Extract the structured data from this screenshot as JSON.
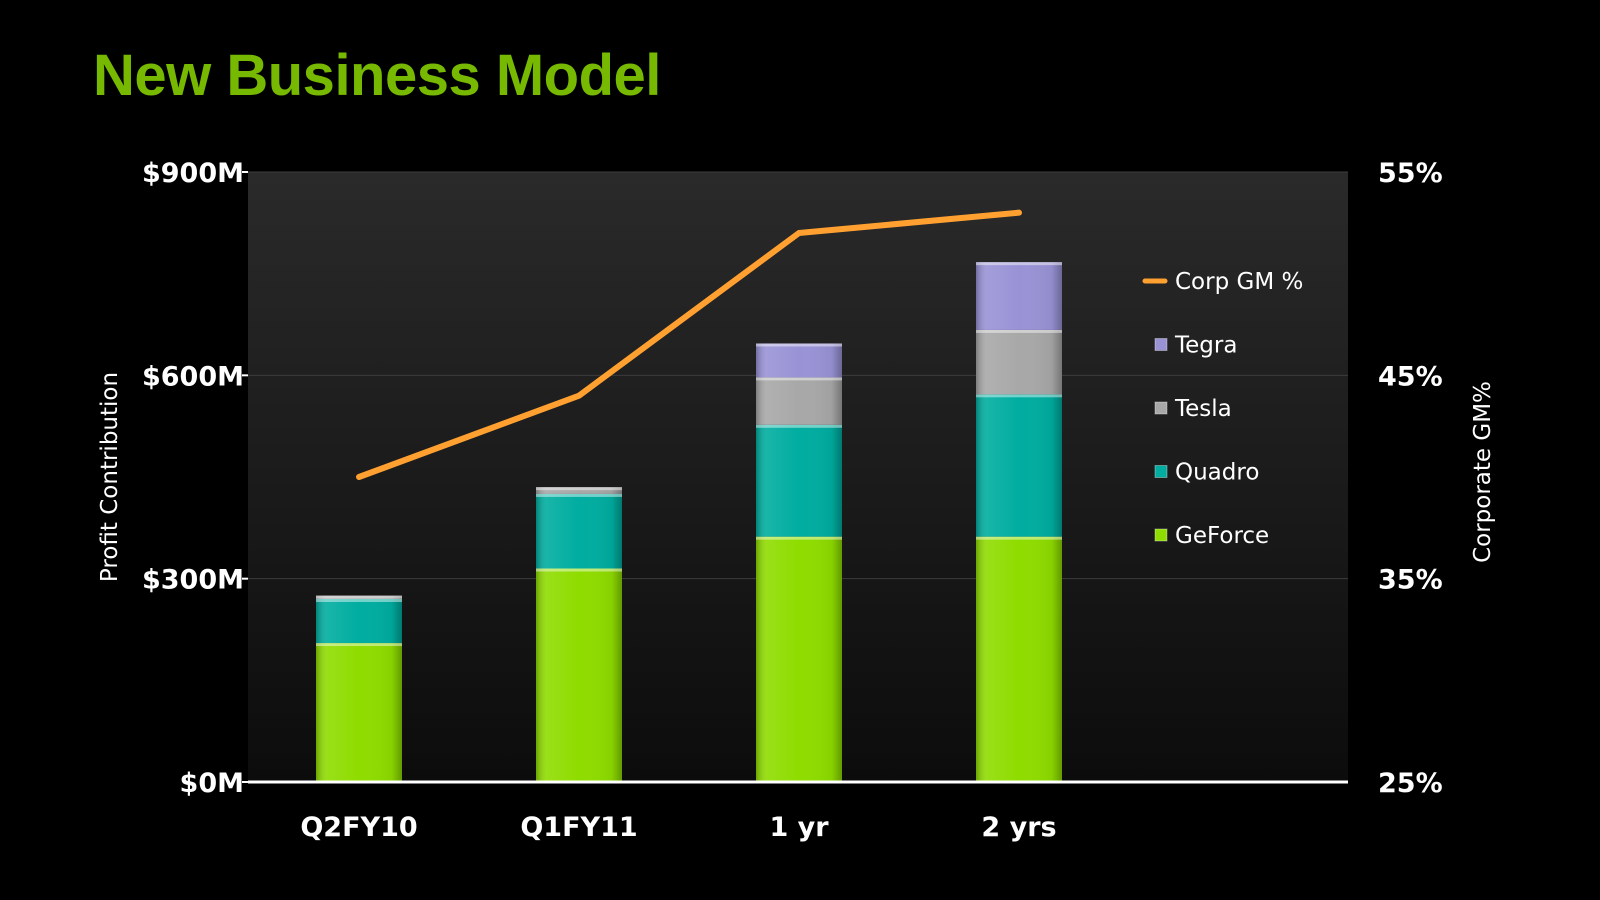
{
  "slide": {
    "title": "New Business Model"
  },
  "chart_data": {
    "type": "bar",
    "stacked": true,
    "title": "",
    "categories": [
      "Q2FY10",
      "Q1FY11",
      "1 yr",
      "2 yrs"
    ],
    "series": [
      {
        "name": "GeForce",
        "values": [
          205,
          315,
          362,
          362
        ],
        "color": "#8fdc00"
      },
      {
        "name": "Quadro",
        "values": [
          65,
          110,
          165,
          210
        ],
        "color": "#00ada0"
      },
      {
        "name": "Tesla",
        "values": [
          5,
          10,
          70,
          95
        ],
        "color": "#a8a8a8"
      },
      {
        "name": "Tegra",
        "values": [
          0,
          0,
          50,
          100
        ],
        "color": "#9993d6"
      }
    ],
    "line_series": {
      "name": "Corp GM %",
      "values": [
        40,
        44,
        52,
        53
      ],
      "color": "#ffa030",
      "axis": "right"
    },
    "ylabel": "Profit Contribution",
    "ylim": [
      0,
      900
    ],
    "yticks": [
      "$0M",
      "$300M",
      "$600M",
      "$900M"
    ],
    "y2label": "Corporate GM%",
    "y2lim": [
      25,
      55
    ],
    "y2ticks": [
      "25%",
      "35%",
      "45%",
      "55%"
    ],
    "grid": true,
    "legend": {
      "position": "right",
      "order": [
        "Corp GM %",
        "Tegra",
        "Tesla",
        "Quadro",
        "GeForce"
      ]
    }
  }
}
